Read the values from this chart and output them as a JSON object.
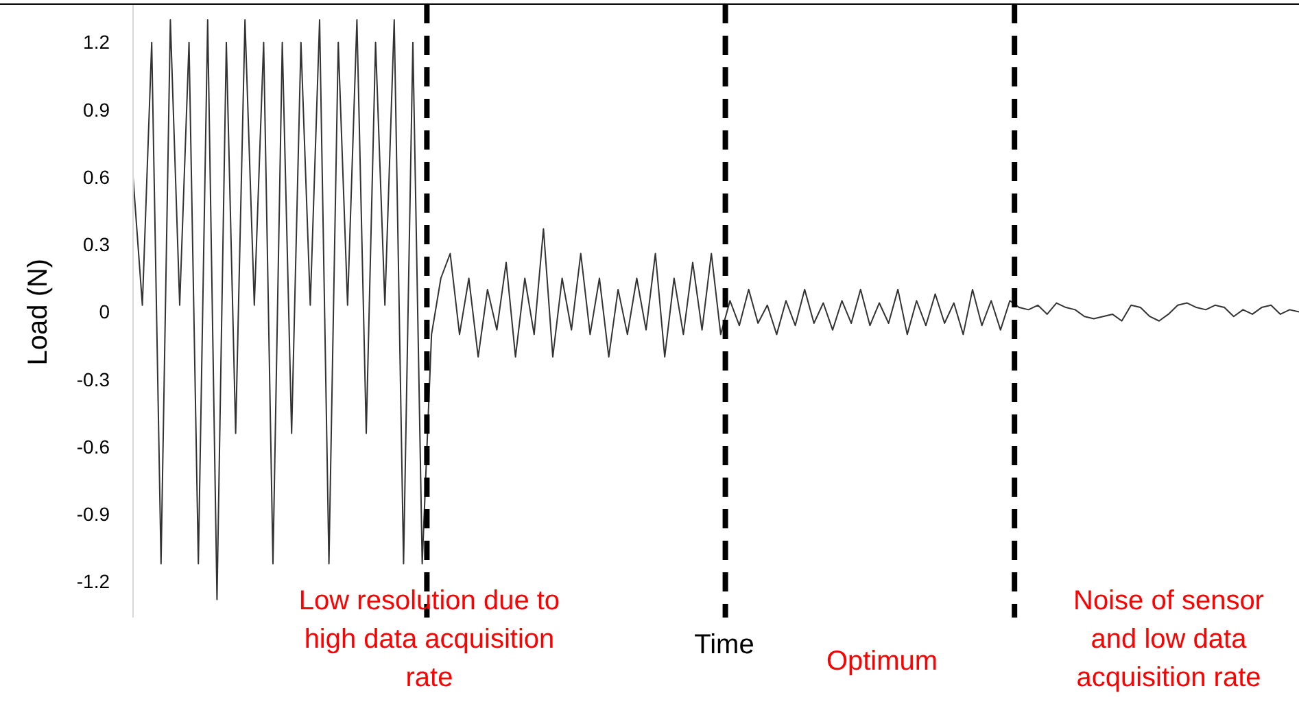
{
  "chart_data": {
    "type": "line",
    "ylabel": "Load (N)",
    "xlabel": "Time",
    "ylim": [
      -1.36,
      1.37
    ],
    "yticks": [
      -1.2,
      -0.9,
      -0.6,
      -0.3,
      0,
      0.3,
      0.6,
      0.9,
      1.2
    ],
    "tick_labels": "y",
    "grid": false,
    "line_style": "solid",
    "categories": [
      null,
      null,
      null,
      null,
      null,
      null,
      null,
      null,
      null,
      null,
      null,
      null,
      null,
      null,
      null,
      null,
      null,
      null,
      null,
      null,
      null,
      null,
      null,
      null,
      null,
      null,
      null,
      null,
      null,
      null,
      null,
      null,
      null,
      null,
      null,
      null,
      null,
      null,
      null,
      null,
      null,
      null,
      null,
      null,
      null,
      null,
      null,
      null,
      null,
      null,
      null,
      null,
      null,
      null,
      null,
      null,
      null,
      null,
      null,
      null,
      null,
      null,
      null,
      null,
      null,
      null,
      null,
      null,
      null,
      null,
      null,
      null,
      null,
      null,
      null,
      null,
      null,
      null,
      null,
      null,
      null,
      null,
      null,
      null,
      null,
      null,
      null,
      null,
      null,
      null,
      null,
      null,
      null,
      null,
      null,
      null,
      null,
      null,
      null,
      null,
      null,
      null,
      null,
      null,
      null,
      null,
      null,
      null,
      null,
      null,
      null,
      null,
      null,
      null,
      null,
      null,
      null,
      null,
      null,
      null,
      null,
      null,
      null,
      null,
      null,
      null
    ],
    "series": [
      {
        "color": "#333333",
        "values": [
          0.6,
          0.03,
          1.2,
          -1.12,
          1.3,
          0.03,
          1.2,
          -1.12,
          1.3,
          -1.28,
          1.2,
          -0.54,
          1.3,
          0.03,
          1.2,
          -1.12,
          1.2,
          -0.54,
          1.2,
          0.03,
          1.3,
          -1.12,
          1.2,
          0.03,
          1.3,
          -0.54,
          1.2,
          0.03,
          1.3,
          -1.12,
          1.2,
          -1.12,
          -0.1,
          0.15,
          0.26,
          -0.1,
          0.15,
          -0.2,
          0.1,
          -0.08,
          0.22,
          -0.2,
          0.15,
          -0.1,
          0.37,
          -0.2,
          0.15,
          -0.08,
          0.26,
          -0.1,
          0.15,
          -0.2,
          0.1,
          -0.1,
          0.15,
          -0.08,
          0.26,
          -0.2,
          0.15,
          -0.1,
          0.22,
          -0.08,
          0.26,
          -0.1,
          0.05,
          -0.06,
          0.1,
          -0.05,
          0.03,
          -0.1,
          0.05,
          -0.06,
          0.1,
          -0.05,
          0.04,
          -0.08,
          0.05,
          -0.05,
          0.1,
          -0.06,
          0.04,
          -0.05,
          0.1,
          -0.1,
          0.05,
          -0.06,
          0.08,
          -0.05,
          0.04,
          -0.1,
          0.1,
          -0.06,
          0.05,
          -0.08,
          0.05,
          0.02,
          0.01,
          0.03,
          -0.01,
          0.04,
          0.02,
          0.01,
          -0.02,
          -0.03,
          -0.02,
          -0.01,
          -0.04,
          0.03,
          0.02,
          -0.02,
          -0.04,
          -0.01,
          0.03,
          0.04,
          0.02,
          0.01,
          0.03,
          0.02,
          -0.02,
          0.01,
          -0.01,
          0.02,
          0.03,
          -0.01,
          0.01,
          0
        ]
      }
    ],
    "annotations": [
      "Low resolution due to high data acquisition rate",
      "Optimum",
      "Noise of sensor and low data acquisition rate"
    ]
  }
}
